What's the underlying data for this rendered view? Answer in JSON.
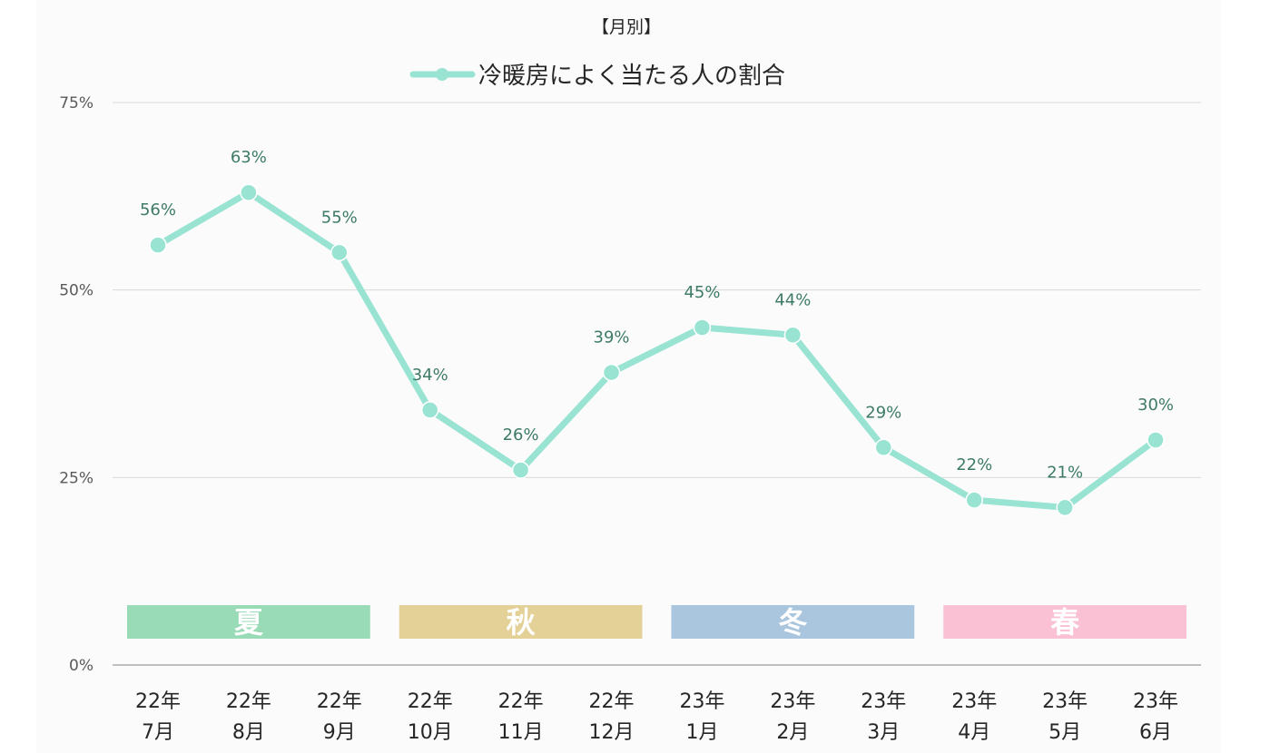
{
  "chart_data": {
    "type": "line",
    "title": "【月別】",
    "categories": [
      [
        "22年",
        "7月"
      ],
      [
        "22年",
        "8月"
      ],
      [
        "22年",
        "9月"
      ],
      [
        "22年",
        "10月"
      ],
      [
        "22年",
        "11月"
      ],
      [
        "22年",
        "12月"
      ],
      [
        "23年",
        "1月"
      ],
      [
        "23年",
        "2月"
      ],
      [
        "23年",
        "3月"
      ],
      [
        "23年",
        "4月"
      ],
      [
        "23年",
        "5月"
      ],
      [
        "23年",
        "6月"
      ]
    ],
    "series": [
      {
        "name": "冷暖房によく当たる人の割合",
        "values": [
          56,
          63,
          55,
          34,
          26,
          39,
          45,
          44,
          29,
          22,
          21,
          30
        ],
        "labels": [
          "56%",
          "63%",
          "55%",
          "34%",
          "26%",
          "39%",
          "45%",
          "44%",
          "29%",
          "22%",
          "21%",
          "30%"
        ],
        "color": "#99e3d3"
      }
    ],
    "ylim": [
      0,
      75
    ],
    "yticks": [
      {
        "value": 0,
        "label": "0%"
      },
      {
        "value": 25,
        "label": "25%"
      },
      {
        "value": 50,
        "label": "50%"
      },
      {
        "value": 75,
        "label": "75%"
      }
    ],
    "legend_position": "top-center",
    "grid": true,
    "season_bands": [
      {
        "label": "夏",
        "from_index": 0,
        "to_index": 2,
        "color": "#99dbb6"
      },
      {
        "label": "秋",
        "from_index": 3,
        "to_index": 5,
        "color": "#e3d197"
      },
      {
        "label": "冬",
        "from_index": 6,
        "to_index": 8,
        "color": "#aac6de"
      },
      {
        "label": "春",
        "from_index": 9,
        "to_index": 11,
        "color": "#f9c1d3"
      }
    ]
  }
}
